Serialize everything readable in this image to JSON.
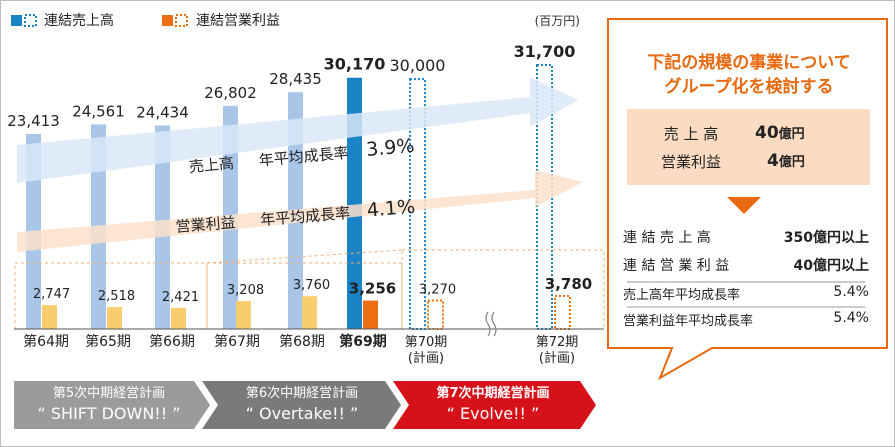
{
  "legend": {
    "sales": "連結売上高",
    "profit": "連結営業利益"
  },
  "unit": "(百万円)",
  "chart_data": {
    "type": "bar",
    "categories": [
      "第64期",
      "第65期",
      "第66期",
      "第67期",
      "第68期",
      "第69期",
      "第70期\n(計画)",
      "第72期\n(計画)"
    ],
    "series": [
      {
        "name": "連結売上高",
        "values": [
          23413,
          24561,
          24434,
          26802,
          28435,
          30170,
          30000,
          31700
        ],
        "labels": [
          "23,413",
          "24,561",
          "24,434",
          "26,802",
          "28,435",
          "30,170",
          "30,000",
          "31,700"
        ]
      },
      {
        "name": "連結営業利益",
        "values": [
          2747,
          2518,
          2421,
          3208,
          3760,
          3256,
          3270,
          3780
        ],
        "labels": [
          "2,747",
          "2,518",
          "2,421",
          "3,208",
          "3,760",
          "3,256",
          "3,270",
          "3,780"
        ]
      }
    ],
    "status": [
      "actual",
      "actual",
      "actual",
      "actual",
      "actual",
      "current",
      "plan",
      "plan"
    ],
    "colors": {
      "sales_actual": "#a9c6e8",
      "sales_current": "#1a83c6",
      "sales_plan": "#1a83c6",
      "profit_actual": "#f9cd6e",
      "profit_current": "#ee6f12",
      "profit_plan": "#ee6f12"
    }
  },
  "arrows": {
    "sales_label": "売上高",
    "sales_rate_label": "年平均成長率",
    "sales_rate": "3.9%",
    "profit_label": "営業利益",
    "profit_rate_label": "年平均成長率",
    "profit_rate": "4.1%",
    "sales_color": "#d9e8f7",
    "profit_color": "#fbe1cb"
  },
  "callout": {
    "title_line1": "下記の規模の事業について",
    "title_line2": "グループ化を検討する",
    "scale": [
      {
        "label": "売 上 高",
        "value": "40",
        "unit": "億円"
      },
      {
        "label": "営業利益",
        "value": "4",
        "unit": "億円"
      }
    ],
    "targets": [
      {
        "label": "連 結 売 上 高",
        "value": "350億円以上"
      },
      {
        "label": "連 結 営 業 利 益",
        "value": "40億円以上"
      },
      {
        "label": "売上高年平均成長率",
        "value": "5.4%"
      },
      {
        "label": "営業利益年平均成長率",
        "value": "5.4%"
      }
    ],
    "accent": "#e8690f"
  },
  "plans": [
    {
      "line1": "第5次中期経営計画",
      "line2": "“ SHIFT DOWN!! ”",
      "color": "#9b9b9b"
    },
    {
      "line1": "第6次中期経営計画",
      "line2": "“ Overtake!! ”",
      "color": "#7a7a7a"
    },
    {
      "line1": "第7次中期経営計画",
      "line2": "“ Evolve!! ”",
      "color": "#d7111a"
    }
  ]
}
